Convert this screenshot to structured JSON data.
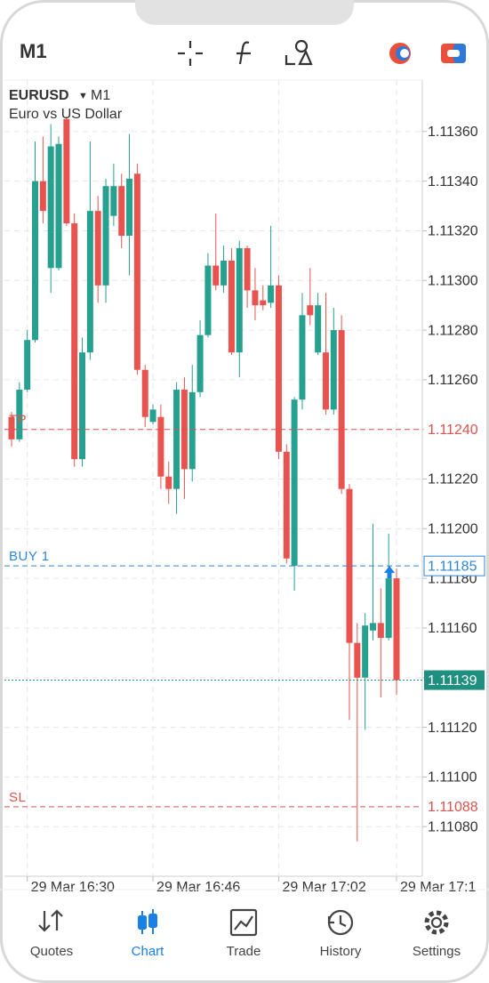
{
  "header": {
    "title": "M1"
  },
  "chart_data": {
    "type": "candlestick",
    "title": "EURUSD",
    "timeframe": "M1",
    "subtitle": "Euro vs US Dollar",
    "categories": [
      null,
      null,
      "29 Mar 16:30",
      null,
      null,
      null,
      null,
      null,
      null,
      null,
      null,
      null,
      null,
      null,
      null,
      null,
      null,
      null,
      "29 Mar 16:46",
      null,
      null,
      null,
      null,
      null,
      null,
      null,
      null,
      null,
      null,
      null,
      null,
      null,
      null,
      null,
      "29 Mar 17:02",
      null,
      null,
      null,
      null,
      null,
      null,
      null,
      null,
      null,
      null,
      null,
      null,
      null,
      null,
      "29 Mar 17:1"
    ],
    "open": [
      1.11245,
      1.11236,
      1.11256,
      1.11276,
      1.1134,
      1.11305,
      1.11305,
      1.11365,
      1.11323,
      1.11228,
      1.11271,
      1.11328,
      1.11298,
      1.11326,
      1.11338,
      1.11318,
      1.11343,
      1.11264,
      1.11243,
      1.11245,
      1.11221,
      1.11216,
      1.11256,
      1.11224,
      1.11255,
      1.11278,
      1.11306,
      1.11298,
      1.11308,
      1.11271,
      1.11313,
      1.11296,
      1.11292,
      1.11291,
      1.11298,
      1.11231,
      1.11185,
      1.11252,
      1.1129,
      1.11271,
      1.11271,
      1.11248,
      1.1128,
      1.11216,
      1.11154,
      1.1114,
      1.11159,
      1.11162,
      1.11156,
      1.1118
    ],
    "high": [
      1.11247,
      1.11259,
      1.1128,
      1.11356,
      1.11358,
      1.11363,
      1.11358,
      1.11366,
      1.11327,
      1.11277,
      1.11356,
      1.11334,
      1.11341,
      1.11347,
      1.11343,
      1.11359,
      1.11347,
      1.11266,
      1.1125,
      1.1125,
      1.11227,
      1.11259,
      1.11261,
      1.11266,
      1.11284,
      1.11311,
      1.11327,
      1.11314,
      1.11313,
      1.11316,
      1.11314,
      1.11305,
      1.11298,
      1.11322,
      1.11302,
      1.11234,
      1.11253,
      1.11295,
      1.11305,
      1.11295,
      1.11295,
      1.11289,
      1.11286,
      1.11218,
      1.11162,
      1.11166,
      1.11202,
      1.11176,
      1.11198,
      1.11184
    ],
    "low": [
      1.11233,
      1.11235,
      1.11255,
      1.11275,
      1.11323,
      1.11295,
      1.11304,
      1.11322,
      1.11225,
      1.11225,
      1.11268,
      1.11291,
      1.11291,
      1.11322,
      1.11313,
      1.11302,
      1.11262,
      1.11241,
      1.11242,
      1.11216,
      1.1121,
      1.11206,
      1.11212,
      1.11219,
      1.11253,
      1.11277,
      1.11296,
      1.11295,
      1.1127,
      1.11261,
      1.11289,
      1.11284,
      1.11288,
      1.11289,
      1.11228,
      1.11186,
      1.11175,
      1.11248,
      1.11282,
      1.1127,
      1.11246,
      1.11246,
      1.11214,
      1.11123,
      1.11074,
      1.11119,
      1.11155,
      1.11132,
      1.11155,
      1.11133
    ],
    "close": [
      1.11236,
      1.11256,
      1.11276,
      1.1134,
      1.11328,
      1.11354,
      1.11355,
      1.11323,
      1.11228,
      1.11271,
      1.11328,
      1.11298,
      1.11338,
      1.11338,
      1.11318,
      1.11341,
      1.11264,
      1.11245,
      1.11248,
      1.11221,
      1.11216,
      1.11256,
      1.11224,
      1.11255,
      1.11278,
      1.11306,
      1.11298,
      1.11308,
      1.11271,
      1.11313,
      1.11296,
      1.1129,
      1.1129,
      1.11298,
      1.11231,
      1.11188,
      1.11252,
      1.11286,
      1.11286,
      1.1129,
      1.11248,
      1.1128,
      1.11216,
      1.11154,
      1.1114,
      1.11161,
      1.11162,
      1.11156,
      1.1118,
      1.11139
    ],
    "up_color": "#26a08f",
    "down_color": "#e8534f",
    "ylim": [
      1.1106,
      1.1138
    ],
    "yticks": [
      {
        "value": 1.1108,
        "label": "1.11080"
      },
      {
        "value": 1.111,
        "label": "1.11100"
      },
      {
        "value": 1.1112,
        "label": "1.11120"
      },
      {
        "value": 1.1114,
        "label": "1.11140"
      },
      {
        "value": 1.1116,
        "label": "1.11160"
      },
      {
        "value": 1.1118,
        "label": "1.11180"
      },
      {
        "value": 1.112,
        "label": "1.11200"
      },
      {
        "value": 1.1122,
        "label": "1.11220"
      },
      {
        "value": 1.1124,
        "label": "1.11240"
      },
      {
        "value": 1.1126,
        "label": "1.11260"
      },
      {
        "value": 1.1128,
        "label": "1.11280"
      },
      {
        "value": 1.113,
        "label": "1.11300"
      },
      {
        "value": 1.1132,
        "label": "1.11320"
      },
      {
        "value": 1.1134,
        "label": "1.11340"
      },
      {
        "value": 1.1136,
        "label": "1.11360"
      }
    ],
    "grid": true,
    "levels": [
      {
        "name": "TP",
        "value": 1.1124,
        "value_label": "1.11240",
        "color": "#d9534f",
        "box": "none",
        "dash": "dashed"
      },
      {
        "name": "BUY 1",
        "value": 1.11185,
        "value_label": "1.11185",
        "color": "#2f86d9",
        "box": "outline",
        "dash": "dashed"
      },
      {
        "value": 1.11139,
        "value_label": "1.11139",
        "color": "#1f8f80",
        "box": "filled",
        "dash": "dotted"
      },
      {
        "name": "SL",
        "value": 1.11088,
        "value_label": "1.11088",
        "color": "#d9534f",
        "box": "none",
        "dash": "dashed"
      }
    ]
  },
  "tabs": [
    {
      "label": "Quotes"
    },
    {
      "label": "Chart",
      "active": true
    },
    {
      "label": "Trade"
    },
    {
      "label": "History"
    },
    {
      "label": "Settings"
    }
  ]
}
